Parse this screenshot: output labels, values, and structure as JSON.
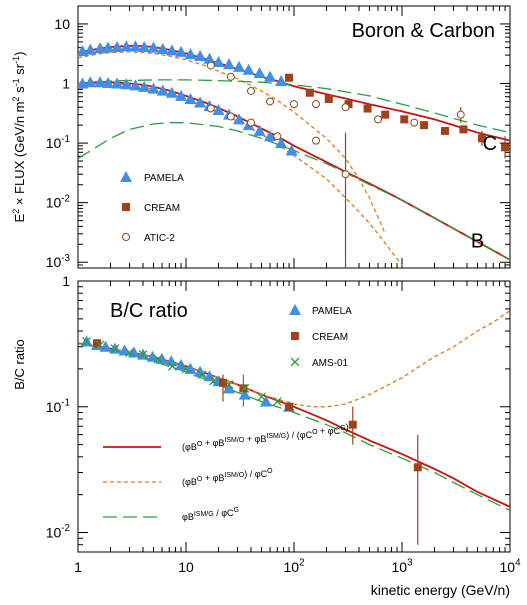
{
  "chart_data": [
    {
      "type": "line",
      "panel": "top",
      "title": "Boron & Carbon",
      "ylabel_parts": [
        "E",
        "2",
        " × FLUX (GeV/n m",
        "2",
        " s",
        "-1",
        " sr",
        "-1",
        ")"
      ],
      "xlim": [
        1,
        10000
      ],
      "ylim": [
        0.0008,
        20
      ],
      "log_x": true,
      "log_y": true,
      "y_ticks": [
        {
          "v": 10,
          "base": "10",
          "exp": ""
        },
        {
          "v": 1,
          "base": "1",
          "exp": ""
        },
        {
          "v": 0.1,
          "base": "10",
          "exp": "-1"
        },
        {
          "v": 0.01,
          "base": "10",
          "exp": "-2"
        },
        {
          "v": 0.001,
          "base": "10",
          "exp": "-3"
        }
      ],
      "curve_labels": [
        {
          "text": "C",
          "x": 6500,
          "y": 0.1
        },
        {
          "text": "B",
          "x": 5000,
          "y": 0.0023
        }
      ],
      "legend_position": "lower-left",
      "legend": [
        {
          "label": "PAMELA",
          "marker": "triangle",
          "color": "#3f8ee8"
        },
        {
          "label": "CREAM",
          "marker": "square",
          "color": "#a0411a"
        },
        {
          "label": "ATIC-2",
          "marker": "circle",
          "color": "#8a4a1a"
        }
      ],
      "series": [
        {
          "marker": "triangle",
          "color": "#3f8ee8",
          "x": [
            1.1,
            1.3,
            1.6,
            1.9,
            2.3,
            2.8,
            3.4,
            4.1,
            5.0,
            6.1,
            7.4,
            9.0,
            11,
            13.5,
            16.5,
            20,
            25,
            31,
            38,
            48,
            60,
            76
          ],
          "y": [
            3.5,
            3.7,
            3.9,
            4.0,
            4.1,
            4.2,
            4.2,
            4.1,
            4.0,
            3.8,
            3.6,
            3.4,
            3.1,
            2.9,
            2.6,
            2.3,
            2.1,
            1.9,
            1.7,
            1.5,
            1.3,
            1.1
          ]
        },
        {
          "marker": "triangle",
          "color": "#3f8ee8",
          "x": [
            1.1,
            1.3,
            1.6,
            1.9,
            2.3,
            2.8,
            3.4,
            4.1,
            5.0,
            6.1,
            7.4,
            9.0,
            11,
            13.5,
            16.5,
            20,
            25,
            31,
            38,
            48,
            60,
            76,
            95
          ],
          "y": [
            1.0,
            1.05,
            1.05,
            1.02,
            1.0,
            0.97,
            0.93,
            0.88,
            0.82,
            0.76,
            0.7,
            0.62,
            0.55,
            0.48,
            0.42,
            0.36,
            0.3,
            0.25,
            0.2,
            0.16,
            0.13,
            0.1,
            0.075
          ]
        },
        {
          "marker": "square",
          "color": "#a0411a",
          "x": [
            90,
            140,
            210,
            320,
            480,
            700,
            1050,
            1600,
            2500,
            3700,
            5500,
            9000
          ],
          "y": [
            1.25,
            0.7,
            0.55,
            0.45,
            0.38,
            0.3,
            0.25,
            0.2,
            0.16,
            0.17,
            0.12,
            0.085
          ]
        },
        {
          "marker": "circle",
          "color": "#8a4a1a",
          "x": [
            17,
            26,
            40,
            60,
            100,
            160,
            300,
            600,
            1300,
            3500
          ],
          "y": [
            2.0,
            1.3,
            0.75,
            0.5,
            0.45,
            0.45,
            0.4,
            0.25,
            0.22,
            0.3
          ]
        },
        {
          "marker": "circle",
          "color": "#8a4a1a",
          "x": [
            17,
            26,
            40,
            70,
            160,
            300
          ],
          "y": [
            0.38,
            0.28,
            0.22,
            0.13,
            0.11,
            0.03
          ]
        },
        {
          "line": "solid",
          "color": "#cc1111",
          "x": [
            1,
            1.5,
            2,
            3,
            4,
            5,
            7,
            10,
            15,
            20,
            30,
            50,
            70,
            100,
            200,
            300,
            500,
            1000,
            2000,
            5000,
            10000
          ],
          "y": [
            3.3,
            3.8,
            4.1,
            4.3,
            4.25,
            4.1,
            3.7,
            3.2,
            2.6,
            2.2,
            1.75,
            1.3,
            1.1,
            0.9,
            0.66,
            0.56,
            0.45,
            0.34,
            0.25,
            0.15,
            0.11
          ]
        },
        {
          "line": "solid",
          "color": "#cc1111",
          "x": [
            1,
            1.5,
            2,
            3,
            4,
            5,
            7,
            10,
            15,
            20,
            30,
            50,
            70,
            100,
            200,
            300,
            500,
            1000,
            2000,
            5000,
            10000
          ],
          "y": [
            1.0,
            1.05,
            1.05,
            1.0,
            0.95,
            0.88,
            0.76,
            0.62,
            0.48,
            0.39,
            0.28,
            0.175,
            0.13,
            0.09,
            0.048,
            0.033,
            0.021,
            0.011,
            0.0055,
            0.0022,
            0.0011
          ]
        },
        {
          "line": "dashed",
          "color": "#e07b17",
          "x": [
            1,
            1.5,
            2,
            3,
            4,
            5,
            7,
            10,
            15,
            20,
            30,
            50,
            70,
            100,
            200,
            300,
            400,
            500,
            700
          ],
          "y": [
            2.7,
            3.1,
            3.3,
            3.4,
            3.3,
            3.2,
            2.9,
            2.5,
            2.0,
            1.6,
            1.2,
            0.75,
            0.52,
            0.33,
            0.12,
            0.055,
            0.025,
            0.012,
            0.003
          ]
        },
        {
          "line": "dashed",
          "color": "#e07b17",
          "x": [
            1,
            1.5,
            2,
            3,
            4,
            5,
            7,
            10,
            15,
            20,
            30,
            50,
            70,
            100,
            200,
            300,
            400,
            500,
            600,
            800,
            1000
          ],
          "y": [
            0.95,
            1.0,
            1.0,
            0.95,
            0.88,
            0.8,
            0.68,
            0.55,
            0.41,
            0.33,
            0.23,
            0.14,
            0.095,
            0.062,
            0.025,
            0.012,
            0.007,
            0.0045,
            0.003,
            0.0015,
            0.0009
          ]
        },
        {
          "line": "longdash",
          "color": "#2f9e3a",
          "x": [
            1,
            2,
            5,
            10,
            20,
            50,
            100,
            200,
            500,
            1000,
            2000,
            5000,
            10000
          ],
          "y": [
            1.0,
            1.1,
            1.15,
            1.15,
            1.12,
            1.05,
            0.95,
            0.82,
            0.62,
            0.45,
            0.32,
            0.2,
            0.15
          ]
        },
        {
          "line": "longdash",
          "color": "#2f9e3a",
          "x": [
            1,
            2,
            3,
            5,
            7,
            10,
            20,
            30,
            50,
            100,
            200,
            300,
            500,
            1000,
            2000,
            5000,
            10000
          ],
          "y": [
            0.055,
            0.12,
            0.17,
            0.21,
            0.22,
            0.22,
            0.19,
            0.16,
            0.12,
            0.075,
            0.045,
            0.032,
            0.02,
            0.011,
            0.0055,
            0.0022,
            0.0011
          ]
        }
      ],
      "error_bars": [
        {
          "x": 300,
          "lo": 0.0008,
          "hi": 0.15,
          "color": "#8a4a1a"
        },
        {
          "x": 3500,
          "lo": 0.22,
          "hi": 0.4,
          "color": "#8a4a1a"
        },
        {
          "x": 9000,
          "lo": 0.055,
          "hi": 0.13,
          "color": "#a0411a"
        },
        {
          "x": 5500,
          "lo": 0.09,
          "hi": 0.16,
          "color": "#a0411a"
        }
      ]
    },
    {
      "type": "line",
      "panel": "bottom",
      "title": "B/C ratio",
      "ylabel": "B/C ratio",
      "xlabel": "kinetic energy (GeV/n)",
      "xlim": [
        1,
        10000
      ],
      "ylim": [
        0.007,
        1
      ],
      "log_x": true,
      "log_y": true,
      "x_ticks": [
        {
          "v": 1,
          "base": "1",
          "exp": ""
        },
        {
          "v": 10,
          "base": "10",
          "exp": ""
        },
        {
          "v": 100,
          "base": "10",
          "exp": "2"
        },
        {
          "v": 1000,
          "base": "10",
          "exp": "3"
        },
        {
          "v": 10000,
          "base": "10",
          "exp": "4"
        }
      ],
      "y_ticks": [
        {
          "v": 1,
          "base": "1",
          "exp": ""
        },
        {
          "v": 0.1,
          "base": "10",
          "exp": "-1"
        },
        {
          "v": 0.01,
          "base": "10",
          "exp": "-2"
        }
      ],
      "legend_position": "top-right",
      "legend": [
        {
          "label": "PAMELA",
          "marker": "triangle",
          "color": "#3f8ee8"
        },
        {
          "label": "CREAM",
          "marker": "square",
          "color": "#a0411a"
        },
        {
          "label": "AMS-01",
          "marker": "cross",
          "color": "#2f9e3a"
        }
      ],
      "model_legend": [
        {
          "line": "solid",
          "color": "#cc1111",
          "formula": [
            [
              "(φ",
              ""
            ],
            [
              "B",
              "O"
            ],
            [
              " + φ",
              ""
            ],
            [
              "B",
              "ISM/O"
            ],
            [
              " + φ",
              ""
            ],
            [
              "B",
              "ISM/G"
            ],
            [
              ") / (φ",
              ""
            ],
            [
              "C",
              "O"
            ],
            [
              " + φ",
              ""
            ],
            [
              "C",
              "G"
            ],
            [
              ")",
              ""
            ]
          ]
        },
        {
          "line": "dashed",
          "color": "#e07b17",
          "formula": [
            [
              "(φ",
              ""
            ],
            [
              "B",
              "O"
            ],
            [
              " + φ",
              ""
            ],
            [
              "B",
              "ISM/O"
            ],
            [
              ") / φ",
              ""
            ],
            [
              "C",
              "O"
            ]
          ]
        },
        {
          "line": "longdash",
          "color": "#2f9e3a",
          "formula": [
            [
              "φ",
              ""
            ],
            [
              "B",
              "ISM/G"
            ],
            [
              " / φ",
              ""
            ],
            [
              "C",
              "G"
            ]
          ]
        }
      ],
      "series": [
        {
          "marker": "triangle",
          "color": "#3f8ee8",
          "x": [
            1.2,
            1.5,
            1.8,
            2.2,
            2.7,
            3.3,
            4.0,
            4.9,
            6.0,
            7.3,
            9.0,
            11,
            13.5,
            16.5,
            20,
            25,
            35,
            55,
            90
          ],
          "y": [
            0.33,
            0.31,
            0.3,
            0.29,
            0.28,
            0.27,
            0.26,
            0.25,
            0.24,
            0.23,
            0.215,
            0.2,
            0.19,
            0.175,
            0.16,
            0.14,
            0.125,
            0.11,
            0.1
          ]
        },
        {
          "marker": "square",
          "color": "#a0411a",
          "x": [
            1.5,
            22,
            34,
            90,
            350,
            1400
          ],
          "y": [
            0.32,
            0.155,
            0.14,
            0.1,
            0.072,
            0.033
          ]
        },
        {
          "marker": "cross",
          "color": "#2f9e3a",
          "x": [
            1.2,
            1.6,
            2.2,
            3.0,
            4.0,
            5.5,
            7.5,
            10,
            14,
            18,
            25,
            35,
            50,
            70
          ],
          "y": [
            0.33,
            0.31,
            0.29,
            0.27,
            0.26,
            0.24,
            0.21,
            0.2,
            0.18,
            0.16,
            0.15,
            0.14,
            0.12,
            0.11
          ]
        },
        {
          "line": "solid",
          "color": "#cc1111",
          "x": [
            1,
            2,
            3,
            5,
            10,
            20,
            30,
            50,
            100,
            200,
            300,
            500,
            1000,
            2000,
            3000,
            5000,
            10000
          ],
          "y": [
            0.32,
            0.29,
            0.27,
            0.25,
            0.21,
            0.17,
            0.15,
            0.125,
            0.1,
            0.078,
            0.066,
            0.054,
            0.042,
            0.032,
            0.027,
            0.021,
            0.016
          ]
        },
        {
          "line": "dashed",
          "color": "#e07b17",
          "x": [
            1,
            2,
            3,
            5,
            10,
            20,
            30,
            50,
            100,
            150,
            200,
            300,
            500,
            1000,
            2000,
            3000,
            5000,
            7000,
            10000
          ],
          "y": [
            0.32,
            0.29,
            0.27,
            0.25,
            0.21,
            0.17,
            0.15,
            0.125,
            0.105,
            0.1,
            0.1,
            0.105,
            0.125,
            0.17,
            0.25,
            0.3,
            0.4,
            0.47,
            0.58
          ]
        },
        {
          "line": "longdash",
          "color": "#2f9e3a",
          "x": [
            1,
            2,
            3,
            5,
            10,
            20,
            30,
            50,
            100,
            200,
            300,
            500,
            1000,
            2000,
            3000,
            5000,
            10000
          ],
          "y": [
            0.32,
            0.28,
            0.26,
            0.23,
            0.19,
            0.15,
            0.13,
            0.11,
            0.09,
            0.072,
            0.062,
            0.05,
            0.039,
            0.03,
            0.025,
            0.02,
            0.015
          ]
        }
      ],
      "error_bars": [
        {
          "x": 22,
          "lo": 0.11,
          "hi": 0.18,
          "color": "#a0411a"
        },
        {
          "x": 34,
          "lo": 0.1,
          "hi": 0.18,
          "color": "#2f9e3a"
        },
        {
          "x": 350,
          "lo": 0.05,
          "hi": 0.1,
          "color": "#a0411a"
        },
        {
          "x": 1400,
          "lo": 0.008,
          "hi": 0.06,
          "color": "#a0411a"
        }
      ]
    }
  ]
}
